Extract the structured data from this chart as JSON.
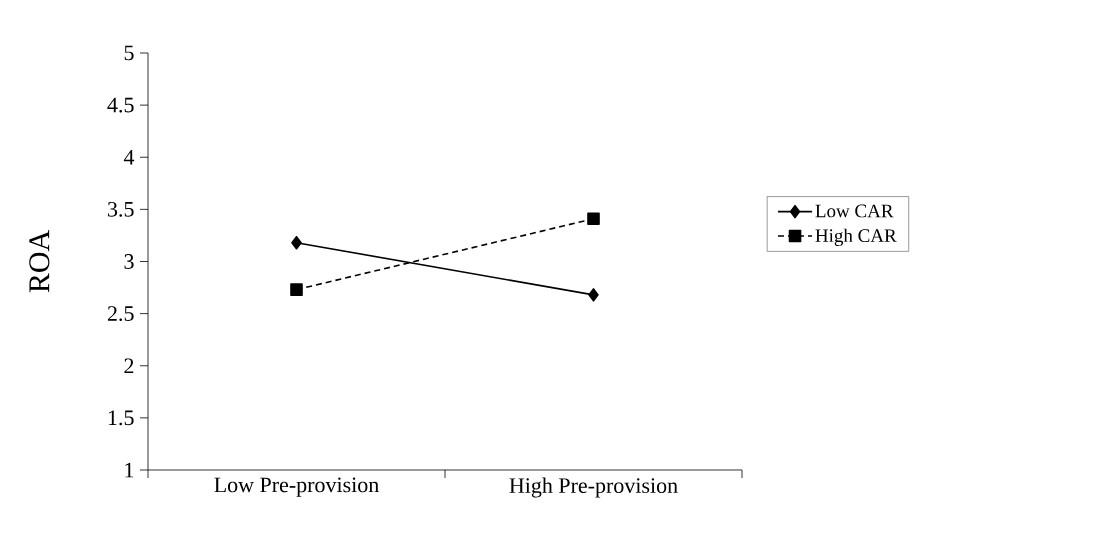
{
  "chart_data": {
    "type": "line",
    "ylabel": "ROA",
    "categories": [
      "Low Pre-provision",
      "High Pre-provision"
    ],
    "series": [
      {
        "name": "Low CAR",
        "color": "#000000",
        "values": [
          3.18,
          2.68
        ],
        "marker": "diamond",
        "line_style": "solid"
      },
      {
        "name": "High CAR",
        "color": "#000000",
        "values": [
          2.73,
          3.41
        ],
        "marker": "square",
        "line_style": "dashed"
      }
    ],
    "ylim": [
      1,
      5
    ],
    "yticks": [
      1,
      1.5,
      2,
      2.5,
      3,
      3.5,
      4,
      4.5,
      5
    ],
    "legend": "right"
  }
}
